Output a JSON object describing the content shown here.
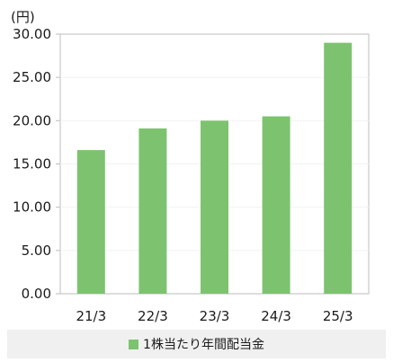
{
  "chart_data": {
    "type": "bar",
    "unit_label": "(円)",
    "categories": [
      "21/3",
      "22/3",
      "23/3",
      "24/3",
      "25/3"
    ],
    "series": [
      {
        "name": "1株当たり年間配当金",
        "values": [
          16.6,
          19.1,
          20.0,
          20.5,
          29.0
        ],
        "color": "#7dc36f"
      }
    ],
    "ylim": [
      0,
      30
    ],
    "yticks": [
      "0.00",
      "5.00",
      "10.00",
      "15.00",
      "20.00",
      "25.00",
      "30.00"
    ],
    "ytick_values": [
      0,
      5,
      10,
      15,
      20,
      25,
      30
    ],
    "grid": true,
    "legend_position": "bottom"
  }
}
